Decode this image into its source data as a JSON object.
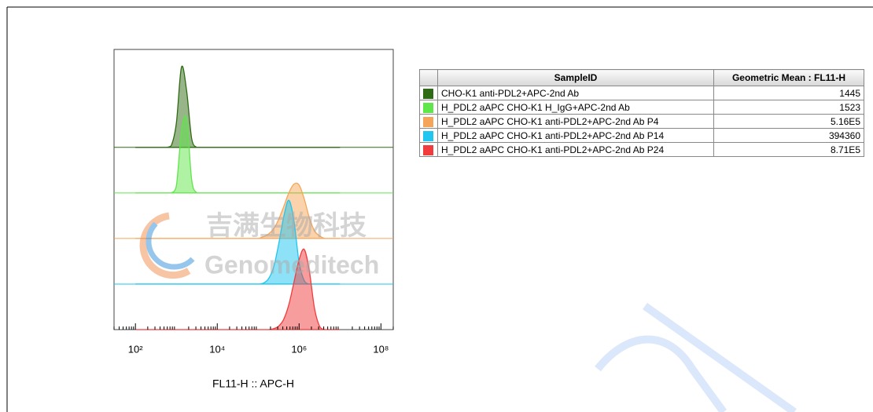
{
  "chart_data": {
    "type": "histogram-overlay",
    "x_label": "FL11-H :: APC-H",
    "xscale": "log",
    "xlim": [
      30,
      200000000
    ],
    "xticks": [
      {
        "value": 100,
        "label": "10²"
      },
      {
        "value": 10000,
        "label": "10⁴"
      },
      {
        "value": 1000000,
        "label": "10⁶"
      },
      {
        "value": 100000000,
        "label": "10⁸"
      }
    ],
    "x": [
      100,
      133,
      178,
      237,
      316,
      422,
      562,
      750,
      1000,
      1334,
      1778,
      2371,
      3162,
      4217,
      5623,
      7499,
      10000,
      13335,
      17783,
      23714,
      31623,
      42170,
      56234,
      74989,
      100000,
      133352,
      177828,
      237137,
      316228,
      421697,
      562341,
      749894,
      1000000,
      1333521,
      1778279,
      2371374,
      3162278,
      4216965,
      5623413,
      7498942,
      10000000
    ],
    "series": [
      {
        "name": "CHO-K1 anti-PDL2+APC-2nd Ab",
        "color": "#2f6b14",
        "values": [
          0,
          0,
          0,
          0,
          0,
          0,
          0,
          2,
          28,
          93,
          66,
          10,
          0,
          0,
          0,
          0,
          0,
          0,
          0,
          0,
          0,
          0,
          0,
          0,
          0,
          0,
          0,
          0,
          0,
          0,
          0,
          0,
          0,
          0,
          0,
          0,
          0,
          0,
          0,
          0,
          0
        ]
      },
      {
        "name": "H_PDL2 aAPC CHO-K1 H_IgG+APC-2nd Ab",
        "color": "#5fe64a",
        "values": [
          0,
          0,
          0,
          0,
          0,
          0,
          0,
          0,
          8,
          71,
          86,
          15,
          0,
          0,
          0,
          0,
          0,
          0,
          0,
          0,
          0,
          0,
          0,
          0,
          0,
          0,
          0,
          0,
          0,
          0,
          0,
          0,
          0,
          0,
          0,
          0,
          0,
          0,
          0,
          0,
          0
        ]
      },
      {
        "name": "H_PDL2 aAPC CHO-K1 anti-PDL2+APC-2nd Ab P4",
        "color": "#f5a55a",
        "values": [
          0,
          0,
          0,
          0,
          0,
          0,
          0,
          0,
          0,
          0,
          0,
          0,
          0,
          0,
          0,
          0,
          0,
          0,
          0,
          0,
          0,
          0,
          0,
          0,
          0,
          2,
          5,
          11,
          22,
          37,
          53,
          63,
          62,
          46,
          24,
          9,
          3,
          0,
          0,
          0,
          0
        ]
      },
      {
        "name": "H_PDL2 aAPC CHO-K1 anti-PDL2+APC-2nd Ab P14",
        "color": "#1ec6f0",
        "values": [
          0,
          0,
          0,
          0,
          0,
          0,
          0,
          0,
          0,
          0,
          0,
          0,
          0,
          0,
          0,
          0,
          0,
          0,
          0,
          0,
          0,
          0,
          0,
          0,
          0,
          1,
          6,
          19,
          46,
          78,
          97,
          73,
          25,
          4,
          0,
          0,
          0,
          0,
          0,
          0,
          0
        ]
      },
      {
        "name": "H_PDL2 aAPC CHO-K1 anti-PDL2+APC-2nd Ab P24",
        "color": "#f03c3c",
        "values": [
          0,
          0,
          0,
          0,
          0,
          0,
          0,
          0,
          0,
          0,
          0,
          0,
          0,
          0,
          0,
          0,
          0,
          0,
          0,
          0,
          0,
          0,
          0,
          0,
          0,
          0,
          0,
          1,
          4,
          12,
          29,
          55,
          81,
          93,
          68,
          25,
          4,
          0,
          0,
          0,
          0
        ]
      }
    ]
  },
  "table": {
    "headers": [
      "SampleID",
      "Geometric Mean : FL11-H"
    ],
    "geometric_mean": [
      "1445",
      "1523",
      "5.16E5",
      "394360",
      "8.71E5"
    ]
  },
  "watermark": [
    "吉满生物科技",
    "Genomeditech"
  ]
}
